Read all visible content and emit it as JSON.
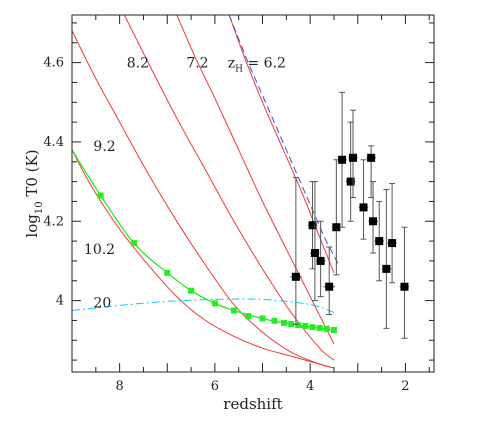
{
  "chart_data": {
    "type": "scatter",
    "xlabel": "redshift",
    "ylabel": "log10 T0 (K)",
    "xlim": [
      9,
      1.4
    ],
    "ylim": [
      3.82,
      4.72
    ],
    "x_ticks": [
      8,
      6,
      4,
      2
    ],
    "y_ticks": [
      4,
      4.2,
      4.4,
      4.6
    ],
    "x_tick_labels": [
      "8",
      "6",
      "4",
      "2"
    ],
    "y_tick_labels": [
      "4",
      "4.2",
      "4.4",
      "4.6"
    ],
    "x_minor_step": 0.5,
    "y_minor_step": 0.05,
    "grid": false,
    "colors": {
      "model": "#ef3b3b",
      "dashed": "#4b4bd6",
      "cyan": "#00d2ee",
      "green": "#22ee22",
      "data": "#000000",
      "errorbar": "#555555"
    },
    "curve_labels": [
      {
        "text": "8.2",
        "x": 7.85,
        "y": 4.6
      },
      {
        "text": "7.2",
        "x": 6.6,
        "y": 4.6
      },
      {
        "text": "z",
        "sub": "H",
        "rest": " = 6.2",
        "x": 5.73,
        "y": 4.6
      },
      {
        "text": "9.2",
        "x": 8.55,
        "y": 4.39
      },
      {
        "text": "10.2",
        "x": 8.75,
        "y": 4.13
      },
      {
        "text": "20",
        "x": 8.55,
        "y": 3.995
      }
    ],
    "series": [
      {
        "id": "zh-6.2",
        "style": "red",
        "x": [
          5.7,
          5.4,
          5.0,
          4.6,
          4.2,
          3.8,
          3.5
        ],
        "y": [
          4.72,
          4.62,
          4.5,
          4.39,
          4.28,
          4.16,
          4.07
        ]
      },
      {
        "id": "zh-7.2",
        "style": "red",
        "x": [
          6.8,
          6.4,
          6.0,
          5.5,
          5.0,
          4.5,
          4.0,
          3.5
        ],
        "y": [
          4.72,
          4.61,
          4.51,
          4.38,
          4.25,
          4.13,
          4.01,
          3.89
        ]
      },
      {
        "id": "zh-8.2",
        "style": "red",
        "x": [
          7.9,
          7.4,
          6.8,
          6.2,
          5.6,
          5.0,
          4.4,
          3.8,
          3.5
        ],
        "y": [
          4.72,
          4.6,
          4.46,
          4.33,
          4.2,
          4.08,
          3.97,
          3.88,
          3.85
        ]
      },
      {
        "id": "zh-9.2",
        "style": "red",
        "x": [
          9.0,
          8.5,
          8.0,
          7.4,
          6.8,
          6.2,
          5.6,
          5.0,
          4.4,
          3.8,
          3.5
        ],
        "y": [
          4.68,
          4.56,
          4.45,
          4.32,
          4.2,
          4.09,
          3.99,
          3.92,
          3.87,
          3.84,
          3.83
        ]
      },
      {
        "id": "zh-10.2",
        "style": "red",
        "x": [
          9.0,
          8.6,
          8.0,
          7.4,
          6.8,
          6.2,
          5.6,
          5.0,
          4.4,
          3.8,
          3.5
        ],
        "y": [
          4.38,
          4.29,
          4.18,
          4.09,
          4.01,
          3.95,
          3.91,
          3.88,
          3.86,
          3.84,
          3.83
        ]
      },
      {
        "id": "zh-20",
        "style": "cyan-dashdot",
        "x": [
          9.0,
          8.0,
          7.0,
          6.0,
          5.0,
          4.0,
          3.5
        ],
        "y": [
          3.975,
          3.988,
          3.998,
          4.003,
          4.003,
          3.99,
          3.97
        ]
      },
      {
        "id": "blue-dashed",
        "style": "blue-dashed",
        "x": [
          5.7,
          5.3,
          4.9,
          4.5,
          4.1,
          3.7,
          3.4
        ],
        "y": [
          4.72,
          4.6,
          4.49,
          4.38,
          4.27,
          4.16,
          4.09
        ]
      },
      {
        "id": "green-curve",
        "style": "green",
        "x": [
          9.0,
          8.4,
          7.7,
          7.0,
          6.5,
          6.0,
          5.6,
          5.2,
          4.8,
          4.4,
          4.0,
          3.5
        ],
        "y": [
          4.38,
          4.265,
          4.145,
          4.07,
          4.025,
          3.993,
          3.975,
          3.961,
          3.949,
          3.941,
          3.934,
          3.925
        ]
      },
      {
        "id": "green-points",
        "style": "green-squares",
        "x": [
          8.4,
          7.7,
          7.0,
          6.5,
          6.0,
          5.6,
          5.3,
          5.0,
          4.75,
          4.55,
          4.4,
          4.25,
          4.1,
          3.95,
          3.8,
          3.65,
          3.5
        ],
        "y": [
          4.265,
          4.145,
          4.07,
          4.025,
          3.993,
          3.975,
          3.961,
          3.955,
          3.949,
          3.944,
          3.941,
          3.938,
          3.936,
          3.933,
          3.931,
          3.929,
          3.926
        ]
      }
    ],
    "observations": [
      {
        "x": 4.3,
        "y": 4.06,
        "xerr": 0.12,
        "yerr": [
          0.25,
          0.12
        ]
      },
      {
        "x": 3.95,
        "y": 4.19,
        "xerr": 0.1,
        "yerr": [
          0.11,
          0.11
        ]
      },
      {
        "x": 3.9,
        "y": 4.12,
        "xerr": 0.1,
        "yerr": [
          0.18,
          0.12
        ]
      },
      {
        "x": 3.78,
        "y": 4.1,
        "xerr": 0.1,
        "yerr": [
          0.1,
          0.09
        ]
      },
      {
        "x": 3.6,
        "y": 4.035,
        "xerr": 0.12,
        "yerr": [
          0.1,
          0.07
        ]
      },
      {
        "x": 3.45,
        "y": 4.185,
        "xerr": 0.1,
        "yerr": [
          0.17,
          0.12
        ]
      },
      {
        "x": 3.33,
        "y": 4.355,
        "xerr": 0.1,
        "yerr": [
          0.17,
          0.17
        ]
      },
      {
        "x": 3.15,
        "y": 4.3,
        "xerr": 0.1,
        "yerr": [
          0.15,
          0.1
        ]
      },
      {
        "x": 3.1,
        "y": 4.36,
        "xerr": 0.1,
        "yerr": [
          0.12,
          0.1
        ]
      },
      {
        "x": 2.88,
        "y": 4.235,
        "xerr": 0.1,
        "yerr": [
          0.12,
          0.08
        ]
      },
      {
        "x": 2.72,
        "y": 4.36,
        "xerr": 0.1,
        "yerr": [
          0.03,
          0.1
        ]
      },
      {
        "x": 2.68,
        "y": 4.2,
        "xerr": 0.1,
        "yerr": [
          0.1,
          0.08
        ]
      },
      {
        "x": 2.55,
        "y": 4.15,
        "xerr": 0.1,
        "yerr": [
          0.1,
          0.1
        ]
      },
      {
        "x": 2.4,
        "y": 4.08,
        "xerr": 0.1,
        "yerr": [
          0.2,
          0.15
        ]
      },
      {
        "x": 2.28,
        "y": 4.145,
        "xerr": 0.1,
        "yerr": [
          0.15,
          0.1
        ]
      },
      {
        "x": 2.02,
        "y": 4.035,
        "xerr": 0.1,
        "yerr": [
          0.15,
          0.13
        ]
      }
    ]
  }
}
